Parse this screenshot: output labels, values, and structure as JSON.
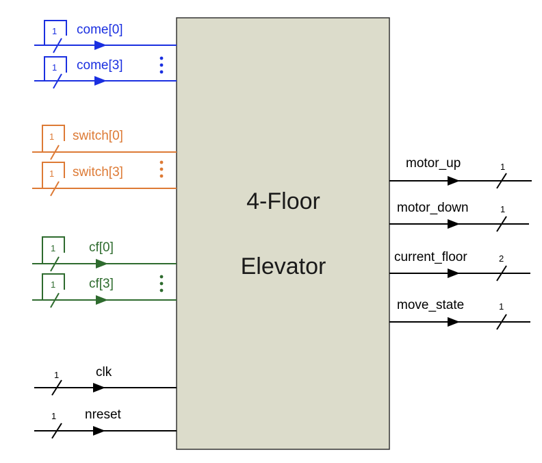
{
  "colors": {
    "come": "#1a2fe0",
    "switch": "#dd7a35",
    "cf": "#2e6b2e",
    "default": "#000000",
    "block_fill": "#dcdccb",
    "block_stroke": "#333333"
  },
  "block": {
    "line1": "4-Floor",
    "line2": "Elevator"
  },
  "inputs": {
    "come": {
      "first": "come[0]",
      "last": "come[3]",
      "width": "1",
      "ellipsis": "⋮"
    },
    "switch": {
      "first": "switch[0]",
      "last": "switch[3]",
      "width": "1",
      "ellipsis": "⋮"
    },
    "cf": {
      "first": "cf[0]",
      "last": "cf[3]",
      "width": "1",
      "ellipsis": "⋮"
    },
    "clk": {
      "label": "clk",
      "width": "1"
    },
    "nreset": {
      "label": "nreset",
      "width": "1"
    }
  },
  "outputs": [
    {
      "label": "motor_up",
      "width": "1"
    },
    {
      "label": "motor_down",
      "width": "1"
    },
    {
      "label": "current_floor",
      "width": "2"
    },
    {
      "label": "move_state",
      "width": "1"
    }
  ]
}
